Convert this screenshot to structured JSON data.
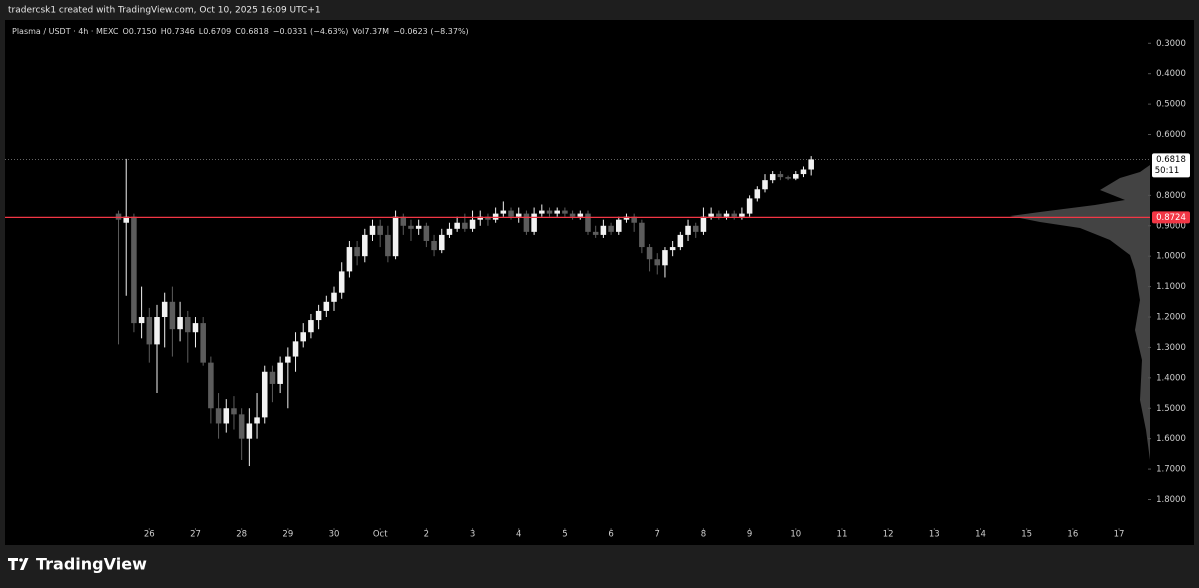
{
  "header": "tradercsk1 created with TradingView.com, Oct 10, 2025 16:09 UTC+1",
  "footer": "TradingView",
  "chart_data": {
    "type": "candlestick",
    "legend": {
      "symbol": "Plasma / USDT · 4h · MEXC",
      "items": [
        "O0.7150",
        "H0.7346",
        "L0.6709",
        "C0.6818",
        "−0.0331 (−4.63%)",
        "Vol7.37M",
        "−0.0623 (−8.37%)"
      ]
    },
    "x": [
      "2025-09-25T08:00",
      "2025-09-25T12:00",
      "2025-09-25T16:00",
      "2025-09-25T20:00",
      "2025-09-26T00:00",
      "2025-09-26T04:00",
      "2025-09-26T08:00",
      "2025-09-26T12:00",
      "2025-09-26T16:00",
      "2025-09-26T20:00",
      "2025-09-27T00:00",
      "2025-09-27T04:00",
      "2025-09-27T08:00",
      "2025-09-27T12:00",
      "2025-09-27T16:00",
      "2025-09-27T20:00",
      "2025-09-28T00:00",
      "2025-09-28T04:00",
      "2025-09-28T08:00",
      "2025-09-28T12:00",
      "2025-09-28T16:00",
      "2025-09-28T20:00",
      "2025-09-29T00:00",
      "2025-09-29T04:00",
      "2025-09-29T08:00",
      "2025-09-29T12:00",
      "2025-09-29T16:00",
      "2025-09-29T20:00",
      "2025-09-30T00:00",
      "2025-09-30T04:00",
      "2025-09-30T08:00",
      "2025-09-30T12:00",
      "2025-09-30T16:00",
      "2025-09-30T20:00",
      "2025-10-01T00:00",
      "2025-10-01T04:00",
      "2025-10-01T08:00",
      "2025-10-01T12:00",
      "2025-10-01T16:00",
      "2025-10-01T20:00",
      "2025-10-02T00:00",
      "2025-10-02T04:00",
      "2025-10-02T08:00",
      "2025-10-02T12:00",
      "2025-10-02T16:00",
      "2025-10-02T20:00",
      "2025-10-03T00:00",
      "2025-10-03T04:00",
      "2025-10-03T08:00",
      "2025-10-03T12:00",
      "2025-10-03T16:00",
      "2025-10-03T20:00",
      "2025-10-04T00:00",
      "2025-10-04T04:00",
      "2025-10-04T08:00",
      "2025-10-04T12:00",
      "2025-10-04T16:00",
      "2025-10-04T20:00",
      "2025-10-05T00:00",
      "2025-10-05T04:00",
      "2025-10-05T08:00",
      "2025-10-05T12:00",
      "2025-10-05T16:00",
      "2025-10-05T20:00",
      "2025-10-06T00:00",
      "2025-10-06T04:00",
      "2025-10-06T08:00",
      "2025-10-06T12:00",
      "2025-10-06T16:00",
      "2025-10-06T20:00",
      "2025-10-07T00:00",
      "2025-10-07T04:00",
      "2025-10-07T08:00",
      "2025-10-07T12:00",
      "2025-10-07T16:00",
      "2025-10-07T20:00",
      "2025-10-08T00:00",
      "2025-10-08T04:00",
      "2025-10-08T08:00",
      "2025-10-08T12:00",
      "2025-10-08T16:00",
      "2025-10-08T20:00",
      "2025-10-09T00:00",
      "2025-10-09T04:00",
      "2025-10-09T08:00",
      "2025-10-09T12:00",
      "2025-10-09T16:00",
      "2025-10-09T20:00",
      "2025-10-10T00:00",
      "2025-10-10T04:00",
      "2025-10-10T08:00"
    ],
    "open": [
      0.86,
      0.89,
      0.87,
      1.22,
      1.2,
      1.29,
      1.2,
      1.15,
      1.24,
      1.2,
      1.25,
      1.22,
      1.35,
      1.5,
      1.55,
      1.5,
      1.52,
      1.6,
      1.55,
      1.53,
      1.38,
      1.42,
      1.35,
      1.33,
      1.28,
      1.25,
      1.21,
      1.18,
      1.15,
      1.12,
      1.05,
      0.97,
      1.0,
      0.93,
      0.9,
      0.93,
      1.0,
      0.87,
      0.9,
      0.91,
      0.9,
      0.95,
      0.98,
      0.93,
      0.91,
      0.89,
      0.91,
      0.88,
      0.87,
      0.88,
      0.86,
      0.85,
      0.87,
      0.86,
      0.92,
      0.86,
      0.85,
      0.86,
      0.85,
      0.86,
      0.87,
      0.86,
      0.92,
      0.93,
      0.9,
      0.92,
      0.88,
      0.87,
      0.89,
      0.97,
      1.01,
      1.03,
      0.98,
      0.97,
      0.93,
      0.9,
      0.92,
      0.87,
      0.86,
      0.87,
      0.86,
      0.87,
      0.86,
      0.81,
      0.78,
      0.75,
      0.73,
      0.74,
      0.745,
      0.73,
      0.715
    ],
    "high": [
      1.29,
      1.13,
      1.25,
      1.27,
      1.35,
      1.45,
      1.3,
      1.33,
      1.28,
      1.35,
      1.3,
      1.36,
      1.55,
      1.6,
      1.58,
      1.57,
      1.67,
      1.69,
      1.6,
      1.55,
      1.48,
      1.45,
      1.5,
      1.38,
      1.3,
      1.27,
      1.24,
      1.2,
      1.18,
      1.14,
      1.07,
      1.03,
      1.02,
      0.95,
      0.97,
      1.02,
      1.01,
      0.93,
      0.95,
      0.93,
      0.97,
      1.0,
      0.99,
      0.94,
      0.92,
      0.92,
      0.92,
      0.9,
      0.9,
      0.89,
      0.87,
      0.88,
      0.89,
      0.93,
      0.93,
      0.87,
      0.87,
      0.87,
      0.87,
      0.88,
      0.88,
      0.93,
      0.94,
      0.94,
      0.93,
      0.93,
      0.89,
      0.92,
      0.99,
      1.05,
      1.06,
      1.07,
      1.0,
      0.98,
      0.95,
      0.94,
      0.93,
      0.88,
      0.88,
      0.88,
      0.88,
      0.88,
      0.87,
      0.82,
      0.79,
      0.76,
      0.75,
      0.75,
      0.75,
      0.74,
      0.7346
    ],
    "low": [
      0.85,
      0.68,
      0.86,
      1.1,
      1.17,
      1.16,
      1.12,
      1.1,
      1.15,
      1.18,
      1.2,
      1.2,
      1.33,
      1.45,
      1.47,
      1.46,
      1.5,
      1.5,
      1.45,
      1.36,
      1.36,
      1.33,
      1.3,
      1.25,
      1.22,
      1.19,
      1.16,
      1.13,
      1.1,
      1.02,
      0.95,
      0.95,
      0.91,
      0.88,
      0.88,
      0.9,
      0.85,
      0.86,
      0.88,
      0.88,
      0.89,
      0.93,
      0.91,
      0.89,
      0.87,
      0.86,
      0.85,
      0.85,
      0.86,
      0.84,
      0.82,
      0.84,
      0.84,
      0.85,
      0.84,
      0.83,
      0.84,
      0.84,
      0.84,
      0.85,
      0.85,
      0.85,
      0.9,
      0.88,
      0.89,
      0.87,
      0.86,
      0.86,
      0.88,
      0.96,
      0.99,
      0.97,
      0.95,
      0.92,
      0.88,
      0.89,
      0.84,
      0.84,
      0.85,
      0.85,
      0.85,
      0.84,
      0.8,
      0.77,
      0.73,
      0.72,
      0.72,
      0.735,
      0.72,
      0.705,
      0.6709
    ],
    "close": [
      0.88,
      0.87,
      1.22,
      1.2,
      1.29,
      1.2,
      1.15,
      1.24,
      1.2,
      1.25,
      1.22,
      1.35,
      1.5,
      1.55,
      1.5,
      1.52,
      1.6,
      1.55,
      1.53,
      1.38,
      1.42,
      1.35,
      1.33,
      1.28,
      1.25,
      1.21,
      1.18,
      1.15,
      1.12,
      1.05,
      0.97,
      1.0,
      0.93,
      0.9,
      0.93,
      1.0,
      0.87,
      0.9,
      0.91,
      0.9,
      0.95,
      0.98,
      0.93,
      0.91,
      0.89,
      0.91,
      0.88,
      0.87,
      0.88,
      0.86,
      0.85,
      0.87,
      0.86,
      0.92,
      0.86,
      0.85,
      0.86,
      0.85,
      0.86,
      0.87,
      0.86,
      0.92,
      0.93,
      0.9,
      0.92,
      0.88,
      0.87,
      0.89,
      0.97,
      1.01,
      1.03,
      0.98,
      0.97,
      0.93,
      0.9,
      0.92,
      0.87,
      0.86,
      0.87,
      0.86,
      0.87,
      0.86,
      0.81,
      0.78,
      0.75,
      0.73,
      0.74,
      0.745,
      0.73,
      0.715,
      0.6818
    ],
    "colors": {
      "up": "#5c5c5c",
      "down": "#f2f2f2"
    },
    "xlim": [
      "2025-09-22T21:00",
      "2025-10-17T13:30"
    ],
    "xticks": [
      {
        "value": "2025-09-26",
        "label": "26"
      },
      {
        "value": "2025-09-27",
        "label": "27"
      },
      {
        "value": "2025-09-28",
        "label": "28"
      },
      {
        "value": "2025-09-29",
        "label": "29"
      },
      {
        "value": "2025-09-30",
        "label": "30"
      },
      {
        "value": "2025-10-01",
        "label": "Oct"
      },
      {
        "value": "2025-10-02",
        "label": "2"
      },
      {
        "value": "2025-10-03",
        "label": "3"
      },
      {
        "value": "2025-10-04",
        "label": "4"
      },
      {
        "value": "2025-10-05",
        "label": "5"
      },
      {
        "value": "2025-10-06",
        "label": "6"
      },
      {
        "value": "2025-10-07",
        "label": "7"
      },
      {
        "value": "2025-10-08",
        "label": "8"
      },
      {
        "value": "2025-10-09",
        "label": "9"
      },
      {
        "value": "2025-10-10",
        "label": "10"
      },
      {
        "value": "2025-10-11",
        "label": "11"
      },
      {
        "value": "2025-10-12",
        "label": "12"
      },
      {
        "value": "2025-10-13",
        "label": "13"
      },
      {
        "value": "2025-10-14",
        "label": "14"
      },
      {
        "value": "2025-10-15",
        "label": "15"
      },
      {
        "value": "2025-10-16",
        "label": "16"
      },
      {
        "value": "2025-10-17",
        "label": "17"
      }
    ],
    "ylim": [
      0.23,
      1.92
    ],
    "inverted": true,
    "yticks": [
      {
        "value": 0.3,
        "label": "0.3000"
      },
      {
        "value": 0.4,
        "label": "0.4000"
      },
      {
        "value": 0.5,
        "label": "0.5000"
      },
      {
        "value": 0.6,
        "label": "0.6000"
      },
      {
        "value": 0.8,
        "label": "0.8000"
      },
      {
        "value": 0.9,
        "label": "0.9000"
      },
      {
        "value": 1.0,
        "label": "1.0000"
      },
      {
        "value": 1.1,
        "label": "1.1000"
      },
      {
        "value": 1.2,
        "label": "1.2000"
      },
      {
        "value": 1.3,
        "label": "1.3000"
      },
      {
        "value": 1.4,
        "label": "1.4000"
      },
      {
        "value": 1.5,
        "label": "1.5000"
      },
      {
        "value": 1.6,
        "label": "1.6000"
      },
      {
        "value": 1.7,
        "label": "1.7000"
      },
      {
        "value": 1.8,
        "label": "1.8000"
      }
    ],
    "price_line": {
      "value": 0.8724,
      "label": "0.8724",
      "color": "#f23645"
    },
    "last_price": {
      "value": 0.6818,
      "label": "0.6818",
      "countdown": "50:11"
    }
  }
}
